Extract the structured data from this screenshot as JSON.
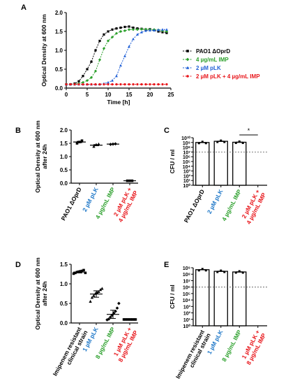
{
  "figure": {
    "panel_labels": [
      "A",
      "B",
      "C",
      "D",
      "E"
    ]
  },
  "chart_data": [
    {
      "panel": "A",
      "type": "line",
      "xlabel": "Time [h]",
      "ylabel": "Optical Density at 600 nm",
      "xlim": [
        0,
        25
      ],
      "ylim": [
        0.0,
        2.0
      ],
      "xticks": [
        "0",
        "5",
        "10",
        "15",
        "20",
        "25"
      ],
      "yticks": [
        "0.0",
        "0.5",
        "1.0",
        "1.5",
        "2.0"
      ],
      "legend_position": "right",
      "x": [
        0,
        1,
        2,
        3,
        4,
        5,
        6,
        7,
        8,
        9,
        10,
        11,
        12,
        13,
        14,
        15,
        16,
        17,
        18,
        19,
        20,
        21,
        22,
        23,
        24
      ],
      "series": [
        {
          "name": "PAO1 ΔOprD",
          "color": "#000000",
          "marker": "square",
          "values": [
            0.1,
            0.1,
            0.12,
            0.18,
            0.32,
            0.5,
            0.7,
            1.0,
            1.25,
            1.42,
            1.5,
            1.55,
            1.58,
            1.6,
            1.62,
            1.63,
            1.6,
            1.58,
            1.57,
            1.55,
            1.56,
            1.53,
            1.5,
            1.48,
            1.46
          ]
        },
        {
          "name": "4 µg/mL IMP",
          "color": "#2ca02c",
          "marker": "diamond",
          "values": [
            0.1,
            0.1,
            0.1,
            0.12,
            0.15,
            0.2,
            0.28,
            0.45,
            0.75,
            1.05,
            1.25,
            1.35,
            1.45,
            1.5,
            1.52,
            1.55,
            1.55,
            1.55,
            1.56,
            1.56,
            1.55,
            1.55,
            1.54,
            1.52,
            1.5
          ]
        },
        {
          "name": "2 µM pLK",
          "color": "#1f5fd6",
          "marker": "triangle",
          "values": [
            0.1,
            0.1,
            0.1,
            0.1,
            0.1,
            0.1,
            0.1,
            0.1,
            0.1,
            0.12,
            0.15,
            0.2,
            0.32,
            0.6,
            0.85,
            1.1,
            1.3,
            1.42,
            1.48,
            1.52,
            1.53,
            1.53,
            1.54,
            1.55,
            1.55
          ]
        },
        {
          "name": "2 µM pLK + 4 µg/mL IMP",
          "color": "#e8161b",
          "marker": "circle",
          "values": [
            0.1,
            0.1,
            0.1,
            0.1,
            0.1,
            0.1,
            0.1,
            0.1,
            0.1,
            0.1,
            0.1,
            0.1,
            0.1,
            0.1,
            0.1,
            0.1,
            0.1,
            0.1,
            0.1,
            0.1,
            0.1,
            0.1,
            0.1,
            0.1,
            0.1
          ]
        }
      ]
    },
    {
      "panel": "B",
      "type": "scatter",
      "ylabel": "Optical Density at 600 nm after 24h",
      "ylim": [
        0.0,
        2.0
      ],
      "yticks": [
        "0.0",
        "0.5",
        "1.0",
        "1.5",
        "2.0"
      ],
      "categories": [
        "PAO1 ΔOprD",
        "2 µM pLK",
        "4 µg/mL IMP",
        "2 µM pLK + 4 µg/mL IMP"
      ],
      "category_colors": [
        "#000000",
        "#1f78c8",
        "#2ca02c",
        "#e8161b"
      ],
      "means": [
        1.55,
        1.43,
        1.47,
        0.09
      ],
      "points": [
        [
          1.5,
          1.55,
          1.6
        ],
        [
          1.38,
          1.45,
          1.47
        ],
        [
          1.46,
          1.47,
          1.48
        ],
        [
          0.09,
          0.09,
          0.09
        ]
      ]
    },
    {
      "panel": "C",
      "type": "bar",
      "ylabel": "CFU / ml",
      "log_scale": true,
      "ylim_exp": [
        0,
        10
      ],
      "yticks_exp": [
        0,
        1,
        2,
        3,
        4,
        5,
        6,
        7,
        8,
        9,
        10
      ],
      "categories": [
        "PAO1 ΔOprD",
        "2 µM pLK",
        "4 µg/mL IMP",
        "2 µM pLK + 4 µg/mL IMP"
      ],
      "category_colors": [
        "#000000",
        "#1f78c8",
        "#2ca02c",
        "#e8161b"
      ],
      "values_exp": [
        9.0,
        9.25,
        9.05,
        null
      ],
      "detection_limit_exp": 7.0,
      "significance": {
        "label": "*",
        "between": [
          2,
          3
        ]
      }
    },
    {
      "panel": "D",
      "type": "scatter",
      "ylabel": "Optical Density at 600 nm after 24h",
      "ylim": [
        0.0,
        1.5
      ],
      "yticks": [
        "0.0",
        "0.5",
        "1.0",
        "1.5"
      ],
      "categories": [
        "Imipenem resistant clinical strain",
        "1 µM pLK",
        "8 µg/mL IMP",
        "1 µM pLK + 8 µg/mL IMP"
      ],
      "category_colors": [
        "#000000",
        "#1f78c8",
        "#2ca02c",
        "#e8161b"
      ],
      "means": [
        1.3,
        0.74,
        0.22,
        0.09
      ],
      "points": [
        [
          1.26,
          1.28,
          1.3,
          1.31,
          1.32,
          1.33,
          1.35,
          1.28
        ],
        [
          0.55,
          0.65,
          0.7,
          0.75,
          0.78,
          0.8,
          0.85,
          0.88
        ],
        [
          0.08,
          0.1,
          0.15,
          0.2,
          0.25,
          0.3,
          0.38,
          0.5
        ],
        [
          0.09,
          0.09,
          0.09,
          0.09,
          0.09,
          0.09,
          0.09,
          0.09
        ]
      ]
    },
    {
      "panel": "E",
      "type": "bar",
      "ylabel": "CFU / ml",
      "log_scale": true,
      "ylim_exp": [
        0,
        9
      ],
      "yticks_exp": [
        0,
        1,
        2,
        3,
        4,
        5,
        6,
        7,
        8,
        9
      ],
      "categories": [
        "Imipenem resistant clinical strain",
        "1 µM pLK",
        "8 µg/mL IMP",
        "1 µM pLK + 8 µg/mL IMP"
      ],
      "category_colors": [
        "#000000",
        "#1f78c8",
        "#2ca02c",
        "#e8161b"
      ],
      "values_exp": [
        8.7,
        8.45,
        8.35,
        null
      ],
      "detection_limit_exp": 6.0
    }
  ]
}
